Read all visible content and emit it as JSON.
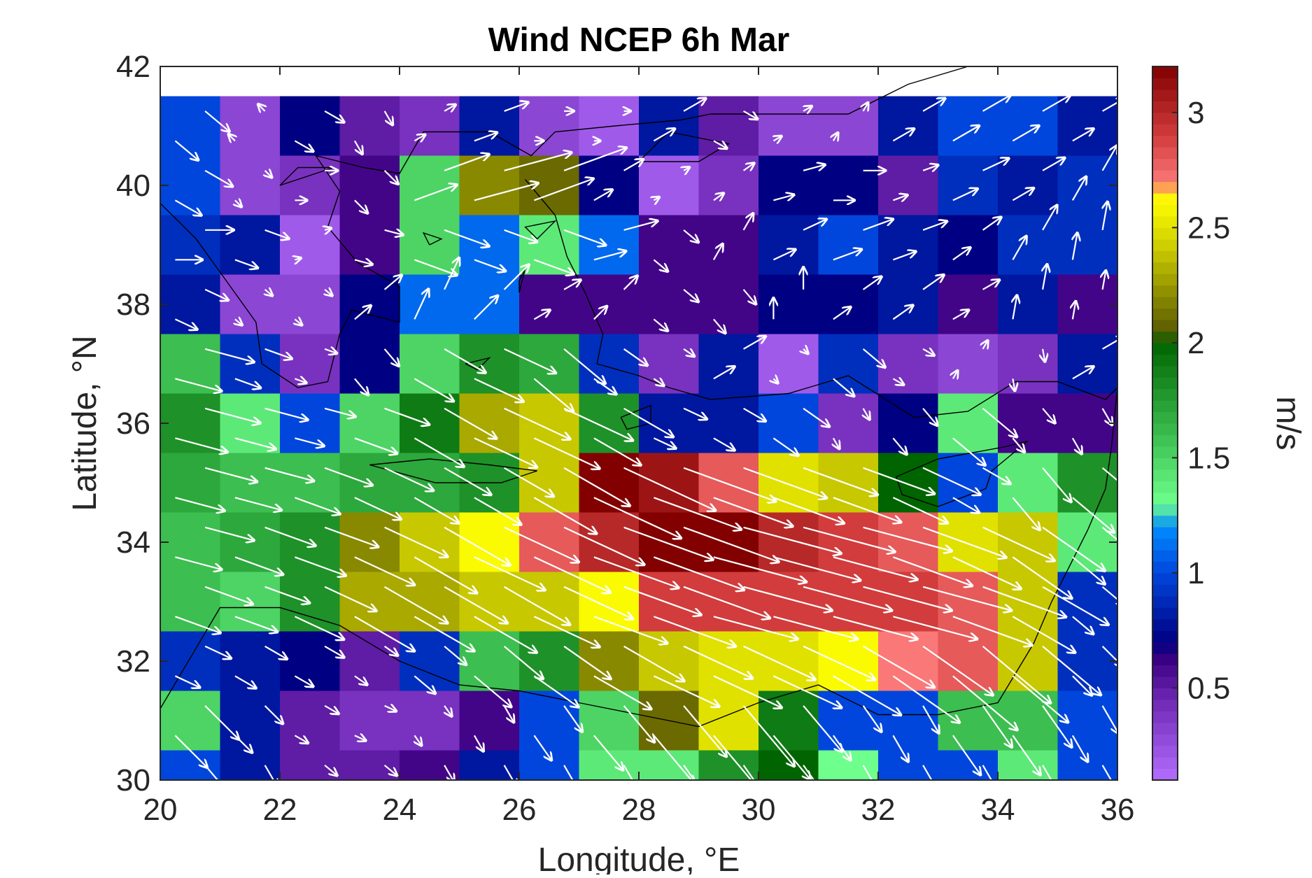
{
  "chart_data": {
    "type": "heatmap",
    "title": "Wind NCEP 6h Mar",
    "xlabel": "Longitude, °E",
    "ylabel": "Latitude, °N",
    "colorbar_label": "m/s",
    "xlim": [
      20,
      36
    ],
    "ylim": [
      30,
      42
    ],
    "xticks": [
      "20",
      "22",
      "24",
      "26",
      "28",
      "30",
      "32",
      "34",
      "36"
    ],
    "yticks": [
      "30",
      "32",
      "34",
      "36",
      "38",
      "40",
      "42"
    ],
    "colorbar_ticks": [
      "0.5",
      "1",
      "1.5",
      "2",
      "2.5",
      "3"
    ],
    "clim": [
      0.1,
      3.2
    ],
    "grid": false,
    "vectors": "white arrows",
    "cell_lon_centers": [
      20.5,
      21.5,
      22.5,
      23.5,
      24.5,
      25.5,
      26.5,
      27.5,
      28.5,
      29.5,
      30.5,
      31.5,
      32.5,
      33.5,
      34.5,
      35.5
    ],
    "cell_lat_centers": [
      41,
      40,
      39,
      38,
      37,
      36,
      35,
      34,
      33,
      32,
      31,
      30
    ],
    "speed": [
      [
        1.0,
        0.3,
        0.7,
        0.5,
        0.4,
        0.8,
        0.3,
        0.2,
        0.8,
        0.5,
        0.3,
        0.3,
        0.8,
        1.0,
        1.0,
        0.8
      ],
      [
        1.0,
        0.3,
        0.4,
        0.6,
        1.5,
        2.2,
        2.1,
        0.7,
        0.2,
        0.4,
        0.7,
        0.7,
        0.5,
        0.9,
        0.8,
        0.9
      ],
      [
        0.9,
        0.8,
        0.2,
        0.6,
        1.5,
        1.1,
        1.4,
        1.1,
        0.6,
        0.6,
        0.8,
        1.0,
        0.8,
        0.7,
        0.9,
        0.9
      ],
      [
        0.8,
        0.3,
        0.3,
        0.7,
        1.1,
        1.1,
        0.6,
        0.6,
        0.6,
        0.6,
        0.7,
        0.7,
        0.8,
        0.6,
        0.8,
        0.6
      ],
      [
        1.6,
        0.9,
        0.4,
        0.7,
        1.5,
        1.8,
        1.7,
        0.9,
        0.4,
        0.8,
        0.2,
        0.9,
        0.4,
        0.3,
        0.4,
        0.8
      ],
      [
        1.8,
        1.4,
        1.0,
        1.5,
        1.9,
        2.3,
        2.4,
        1.8,
        0.8,
        0.8,
        1.0,
        0.4,
        0.7,
        1.4,
        0.6,
        0.6
      ],
      [
        1.7,
        1.6,
        1.6,
        1.7,
        1.7,
        1.8,
        2.4,
        3.2,
        3.1,
        2.8,
        2.5,
        2.4,
        2.0,
        1.0,
        1.4,
        1.8
      ],
      [
        1.6,
        1.7,
        1.8,
        2.2,
        2.4,
        2.6,
        2.8,
        3.0,
        3.2,
        3.2,
        3.0,
        2.9,
        2.8,
        2.5,
        2.4,
        1.4
      ],
      [
        1.6,
        1.5,
        1.8,
        2.3,
        2.3,
        2.4,
        2.4,
        2.6,
        2.9,
        2.9,
        2.9,
        2.9,
        2.9,
        2.8,
        2.4,
        0.9
      ],
      [
        0.9,
        0.8,
        0.7,
        0.5,
        0.9,
        1.6,
        1.8,
        2.2,
        2.4,
        2.5,
        2.5,
        2.6,
        2.7,
        2.8,
        2.4,
        0.9
      ],
      [
        1.5,
        0.8,
        0.5,
        0.4,
        0.4,
        0.6,
        1.0,
        1.5,
        2.1,
        2.5,
        1.9,
        1.0,
        1.0,
        1.6,
        1.6,
        1.0
      ],
      [
        1.0,
        0.8,
        0.5,
        0.5,
        0.6,
        0.8,
        1.0,
        1.4,
        1.4,
        1.8,
        2.0,
        1.3,
        1.0,
        1.0,
        1.4,
        1.0
      ]
    ],
    "direction_deg": [
      [
        -40,
        135,
        -30,
        -60,
        30,
        20,
        0,
        0,
        30,
        -30,
        30,
        60,
        30,
        30,
        30,
        30
      ],
      [
        -30,
        -45,
        0,
        -45,
        20,
        15,
        20,
        30,
        30,
        35,
        15,
        0,
        20,
        25,
        30,
        60
      ],
      [
        0,
        -20,
        15,
        -15,
        -20,
        -20,
        -20,
        15,
        -40,
        60,
        25,
        20,
        20,
        35,
        60,
        80
      ],
      [
        -25,
        -40,
        -40,
        40,
        65,
        45,
        30,
        45,
        -40,
        -50,
        90,
        35,
        35,
        30,
        80,
        80
      ],
      [
        -15,
        -20,
        -20,
        -50,
        -30,
        -25,
        -40,
        -35,
        -35,
        30,
        -45,
        -40,
        -30,
        60,
        -80,
        30
      ],
      [
        -15,
        -15,
        -15,
        -20,
        -30,
        -25,
        -25,
        -30,
        -25,
        -30,
        -35,
        -60,
        -50,
        -40,
        -50,
        -60
      ],
      [
        -15,
        -15,
        -20,
        -25,
        -30,
        -30,
        -30,
        -25,
        -20,
        -20,
        -20,
        -20,
        -25,
        -30,
        -50,
        -40
      ],
      [
        -15,
        -20,
        -20,
        -25,
        -30,
        -25,
        -25,
        -20,
        -20,
        -15,
        -15,
        -15,
        -20,
        -25,
        -35,
        -40
      ],
      [
        -20,
        -20,
        -25,
        -30,
        -30,
        -30,
        -25,
        -20,
        -20,
        -15,
        -15,
        -15,
        -15,
        -20,
        -30,
        -40
      ],
      [
        -25,
        -30,
        -30,
        -35,
        -40,
        -40,
        -35,
        -30,
        -25,
        -25,
        -25,
        -30,
        -35,
        -40,
        -40,
        -45
      ],
      [
        -45,
        -45,
        -30,
        -25,
        -55,
        -60,
        -55,
        -50,
        -50,
        -50,
        -50,
        -55,
        -60,
        -55,
        -55,
        -60
      ],
      [
        -50,
        -60,
        -40,
        -40,
        -60,
        -60,
        -60,
        -60,
        -55,
        -55,
        -55,
        -60,
        -60,
        -60,
        -60,
        -60
      ]
    ]
  }
}
